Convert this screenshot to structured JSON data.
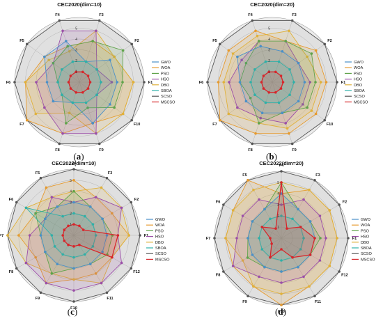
{
  "chart_data": [
    {
      "type": "radar",
      "title": "CEC2020(dim=10)",
      "panel_label": "a",
      "axes": [
        "F1",
        "F2",
        "F3",
        "F4",
        "F5",
        "F6",
        "F7",
        "F8",
        "F9",
        "F10"
      ],
      "rlim": [
        0,
        6
      ],
      "ticks": [
        "1",
        "2",
        "3",
        "4",
        "5"
      ],
      "series": [
        {
          "name": "GWO",
          "values": [
            3.5,
            3.5,
            2,
            4,
            4,
            3,
            3,
            2,
            4,
            3.5
          ]
        },
        {
          "name": "WOA",
          "values": [
            5,
            4,
            4,
            3.5,
            4,
            5,
            6,
            5,
            4,
            5
          ]
        },
        {
          "name": "PSO",
          "values": [
            4,
            5,
            4,
            3.5,
            3,
            2,
            2,
            4,
            2.5,
            4
          ]
        },
        {
          "name": "HSO",
          "values": [
            3,
            2,
            5,
            5,
            3,
            4,
            4,
            5,
            5,
            2
          ]
        },
        {
          "name": "DBO",
          "values": [
            5,
            4,
            5,
            3,
            3.5,
            5,
            5,
            3,
            5,
            5
          ]
        },
        {
          "name": "SBOA",
          "values": [
            2,
            2,
            2,
            2,
            2,
            2,
            2,
            2,
            2,
            2
          ]
        },
        {
          "name": "SCSO",
          "values": [
            6,
            6,
            6,
            6,
            6,
            6,
            6,
            6,
            6,
            6
          ]
        },
        {
          "name": "MSCSO",
          "values": [
            1,
            1,
            1,
            1,
            1,
            1,
            1,
            1,
            1,
            1
          ]
        }
      ],
      "legend": "right"
    },
    {
      "type": "radar",
      "title": "CEC2020(dim=20)",
      "panel_label": "b",
      "axes": [
        "F1",
        "F2",
        "F3",
        "F4",
        "F5",
        "F6",
        "F7",
        "F8",
        "F9",
        "F10"
      ],
      "rlim": [
        0,
        6
      ],
      "ticks": [
        "1",
        "2",
        "3",
        "4",
        "5"
      ],
      "series": [
        {
          "name": "GWO",
          "values": [
            3,
            3,
            3,
            3.5,
            4,
            3,
            3,
            3,
            3,
            3
          ]
        },
        {
          "name": "WOA",
          "values": [
            5,
            5,
            4,
            5,
            5,
            5,
            6,
            5,
            5,
            5
          ]
        },
        {
          "name": "PSO",
          "values": [
            4,
            4.5,
            4,
            4,
            3,
            3,
            2.5,
            4,
            3,
            4
          ]
        },
        {
          "name": "HSO",
          "values": [
            3.5,
            3,
            4,
            4,
            3.5,
            4,
            4,
            3.5,
            4,
            3.5
          ]
        },
        {
          "name": "DBO",
          "values": [
            4.5,
            4,
            5,
            4.5,
            4.5,
            4.5,
            5,
            4,
            4.5,
            4.5
          ]
        },
        {
          "name": "SBOA",
          "values": [
            2,
            2,
            2,
            2,
            2,
            2,
            2,
            2,
            2,
            2
          ]
        },
        {
          "name": "SCSO",
          "values": [
            6,
            6,
            6,
            6,
            6,
            6,
            6,
            6,
            6,
            6
          ]
        },
        {
          "name": "MSCSO",
          "values": [
            1,
            1,
            1,
            1,
            1,
            1,
            1,
            1,
            1,
            1
          ]
        }
      ],
      "legend": "right"
    },
    {
      "type": "radar",
      "title": "CEC2022(dim=10)",
      "panel_label": "c",
      "axes": [
        "F1",
        "F2",
        "F3",
        "F4",
        "F5",
        "F6",
        "F7",
        "F8",
        "F9",
        "F10",
        "F11",
        "F12"
      ],
      "rlim": [
        0,
        6
      ],
      "ticks": [
        "1",
        "2",
        "3",
        "4",
        "5"
      ],
      "series": [
        {
          "name": "GWO",
          "values": [
            3,
            3,
            3,
            3,
            3,
            3,
            3,
            3,
            3,
            3,
            3,
            3
          ]
        },
        {
          "name": "WOA",
          "values": [
            5,
            4,
            4,
            5,
            5,
            4,
            5,
            4,
            5,
            4,
            4,
            4
          ]
        },
        {
          "name": "PSO",
          "values": [
            3.5,
            3,
            3,
            4,
            3,
            4,
            3,
            3,
            4,
            3,
            3,
            3.5
          ]
        },
        {
          "name": "HSO",
          "values": [
            4,
            5,
            4,
            3,
            4,
            3,
            4,
            5,
            5,
            5,
            5,
            5
          ]
        },
        {
          "name": "DBO",
          "values": [
            5,
            5,
            5,
            4,
            4,
            5,
            6,
            5,
            4,
            4,
            5,
            4
          ]
        },
        {
          "name": "SBOA",
          "values": [
            2,
            2,
            2,
            2,
            2,
            5,
            2,
            2,
            2,
            2,
            2,
            2
          ]
        },
        {
          "name": "SCSO",
          "values": [
            6,
            6,
            6,
            6,
            6,
            6,
            6,
            6,
            6,
            6,
            6,
            6
          ]
        },
        {
          "name": "MSCSO",
          "values": [
            4,
            1,
            1,
            1,
            1,
            1,
            1,
            1,
            1,
            1,
            1,
            4
          ]
        }
      ],
      "legend": "right"
    },
    {
      "type": "radar",
      "title": "CEC2022(dim=20)",
      "panel_label": "d",
      "axes": [
        "F1",
        "F2",
        "F3",
        "F4",
        "F5",
        "F6",
        "F7",
        "F8",
        "F9",
        "F10",
        "F11",
        "F12"
      ],
      "rlim": [
        0,
        6
      ],
      "ticks": [
        "1",
        "2",
        "3",
        "4",
        "5"
      ],
      "series": [
        {
          "name": "GWO",
          "values": [
            3,
            3,
            3,
            4,
            3,
            3,
            3,
            3,
            3,
            3,
            3,
            3
          ]
        },
        {
          "name": "WOA",
          "values": [
            5,
            5,
            5,
            4,
            6,
            5,
            5,
            5,
            5,
            6,
            5,
            5
          ]
        },
        {
          "name": "PSO",
          "values": [
            3.5,
            3,
            3,
            5,
            3,
            3,
            3,
            3.5,
            3,
            3,
            3,
            3
          ]
        },
        {
          "name": "HSO",
          "values": [
            4,
            4,
            4,
            3,
            4,
            4,
            4,
            5,
            4,
            4,
            4,
            4
          ]
        },
        {
          "name": "DBO",
          "values": [
            5,
            5,
            5,
            5,
            5,
            5,
            5,
            4,
            5,
            5,
            5,
            5
          ]
        },
        {
          "name": "SBOA",
          "values": [
            2,
            2,
            2,
            2,
            2,
            2,
            2,
            2,
            2,
            2,
            2,
            2
          ]
        },
        {
          "name": "SCSO",
          "values": [
            6,
            6,
            6,
            6,
            6,
            6,
            6,
            6,
            6,
            6,
            6,
            6
          ]
        },
        {
          "name": "MSCSO",
          "values": [
            3,
            2,
            1,
            5,
            1,
            2,
            1,
            1,
            2,
            1,
            2,
            3
          ]
        }
      ],
      "legend": "right"
    }
  ],
  "colors": {
    "GWO": "#4a90c8",
    "WOA": "#e69a2e",
    "PSO": "#5fa34a",
    "HSO": "#9b4fa8",
    "DBO": "#e0b13a",
    "SBOA": "#2fb0a8",
    "SCSO": "#555555",
    "MSCSO": "#d7262b"
  }
}
